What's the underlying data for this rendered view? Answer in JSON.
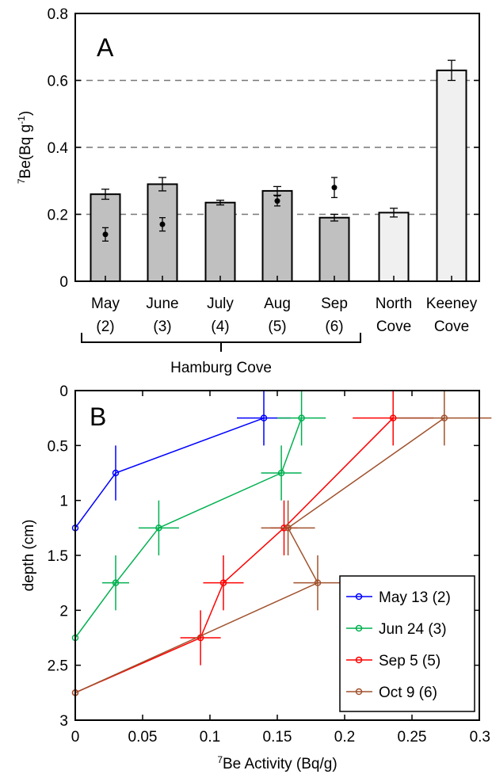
{
  "chart_data": [
    {
      "panel_label": "A",
      "type": "bar",
      "ylabel_super": "7",
      "ylabel_main": "Be(Bq g",
      "ylabel_exp": "-1",
      "ylabel_close": ")",
      "ylim": [
        0,
        0.8
      ],
      "y_ticks": [
        0,
        0.2,
        0.4,
        0.6,
        0.8
      ],
      "y_tick_labels": [
        "0",
        "0.2",
        "0.4",
        "0.6",
        "0.8"
      ],
      "reference_lines": [
        0.2,
        0.4,
        0.6
      ],
      "categories": [
        {
          "line1": "May",
          "line2": "(2)"
        },
        {
          "line1": "June",
          "line2": "(3)"
        },
        {
          "line1": "July",
          "line2": "(4)"
        },
        {
          "line1": "Aug",
          "line2": "(5)"
        },
        {
          "line1": "Sep",
          "line2": "(6)"
        },
        {
          "line1": "North",
          "line2": "Cove"
        },
        {
          "line1": "Keeney",
          "line2": "Cove"
        }
      ],
      "values": [
        0.26,
        0.29,
        0.235,
        0.27,
        0.19,
        0.205,
        0.63
      ],
      "errors": [
        0.015,
        0.02,
        0.007,
        0.013,
        0.01,
        0.013,
        0.03
      ],
      "bar_colors": [
        "#c0c0c0",
        "#c0c0c0",
        "#c0c0c0",
        "#c0c0c0",
        "#c0c0c0",
        "#f0f0f0",
        "#f0f0f0"
      ],
      "points": [
        {
          "index": 0,
          "y": 0.14,
          "err": 0.02
        },
        {
          "index": 1,
          "y": 0.17,
          "err": 0.02
        },
        {
          "index": 3,
          "y": 0.24,
          "err": 0.015
        },
        {
          "index": 4,
          "y": 0.28,
          "err": 0.03
        }
      ],
      "group_label": "Hamburg Cove",
      "group_span": [
        0,
        4
      ]
    },
    {
      "panel_label": "B",
      "type": "line",
      "xlabel_super": "7",
      "xlabel_main": "Be Activity (Bq/g)",
      "ylabel": "depth (cm)",
      "xlim": [
        0,
        0.3
      ],
      "ylim": [
        0,
        3
      ],
      "y_reversed": true,
      "x_ticks": [
        0,
        0.05,
        0.1,
        0.15,
        0.2,
        0.25,
        0.3
      ],
      "x_tick_labels": [
        "0",
        "0.05",
        "0.1",
        "0.15",
        "0.2",
        "0.25",
        "0.3"
      ],
      "y_ticks": [
        0,
        0.5,
        1,
        1.5,
        2,
        2.5,
        3
      ],
      "y_tick_labels": [
        "0",
        "0.5",
        "1",
        "1.5",
        "2",
        "2.5",
        "3"
      ],
      "series": [
        {
          "name": "May 13 (2)",
          "color": "#0000ff",
          "x": [
            0.14,
            0.03,
            0.0
          ],
          "y": [
            0.25,
            0.75,
            1.25
          ],
          "xerr": [
            0.02,
            0.0,
            0.0
          ],
          "yerr": [
            0.25,
            0.25,
            0.0
          ]
        },
        {
          "name": "Jun 24 (3)",
          "color": "#00b050",
          "x": [
            0.168,
            0.153,
            0.062,
            0.03,
            0.0
          ],
          "y": [
            0.25,
            0.75,
            1.25,
            1.75,
            2.25
          ],
          "xerr": [
            0.018,
            0.015,
            0.015,
            0.01,
            0.0
          ],
          "yerr": [
            0.25,
            0.25,
            0.25,
            0.25,
            0.0
          ]
        },
        {
          "name": "Sep 5 (5)",
          "color": "#ff0000",
          "x": [
            0.236,
            0.155,
            0.11,
            0.093,
            0.0
          ],
          "y": [
            0.25,
            1.25,
            1.75,
            2.25,
            2.75
          ],
          "xerr": [
            0.03,
            0.01,
            0.015,
            0.015,
            0.0
          ],
          "yerr": [
            0.25,
            0.25,
            0.25,
            0.25,
            0.0
          ]
        },
        {
          "name": "Oct 9 (6)",
          "color": "#a0522d",
          "x": [
            0.274,
            0.158,
            0.18,
            0.0
          ],
          "y": [
            0.25,
            1.25,
            1.75,
            2.75
          ],
          "xerr": [
            0.035,
            0.02,
            0.018,
            0.0
          ],
          "yerr": [
            0.25,
            0.25,
            0.25,
            0.0
          ]
        }
      ],
      "legend_placement": "bottom-right"
    }
  ]
}
